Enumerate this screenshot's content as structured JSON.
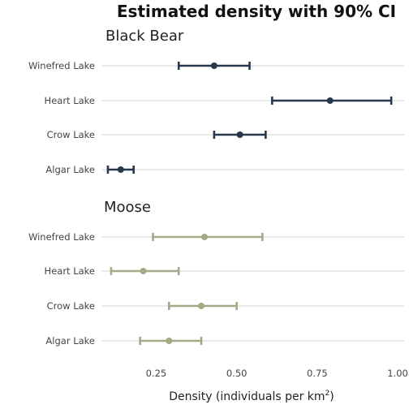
{
  "chart_data": {
    "type": "errorbar",
    "title": "Estimated density with 90% CI",
    "xlabel": "Density (individuals per km",
    "xlabel_sup": "2",
    "xlabel_end": ")",
    "xlim": [
      0.08,
      1.02
    ],
    "xticks": [
      0.25,
      0.5,
      0.75,
      1.0
    ],
    "xtick_labels": [
      "0.25",
      "0.50",
      "0.75",
      "1.00"
    ],
    "grid": true,
    "panels": [
      {
        "name": "Black Bear",
        "color": "#27384d",
        "categories": [
          "Winefred Lake",
          "Heart Lake",
          "Crow Lake",
          "Algar Lake"
        ],
        "estimates": [
          0.43,
          0.79,
          0.51,
          0.14
        ],
        "lower": [
          0.32,
          0.61,
          0.43,
          0.1
        ],
        "upper": [
          0.54,
          0.98,
          0.59,
          0.18
        ]
      },
      {
        "name": "Moose",
        "color": "#a6a886",
        "categories": [
          "Winefred Lake",
          "Heart Lake",
          "Crow Lake",
          "Algar Lake"
        ],
        "estimates": [
          0.4,
          0.21,
          0.39,
          0.29
        ],
        "lower": [
          0.24,
          0.11,
          0.29,
          0.2
        ],
        "upper": [
          0.58,
          0.32,
          0.5,
          0.39
        ]
      }
    ]
  }
}
